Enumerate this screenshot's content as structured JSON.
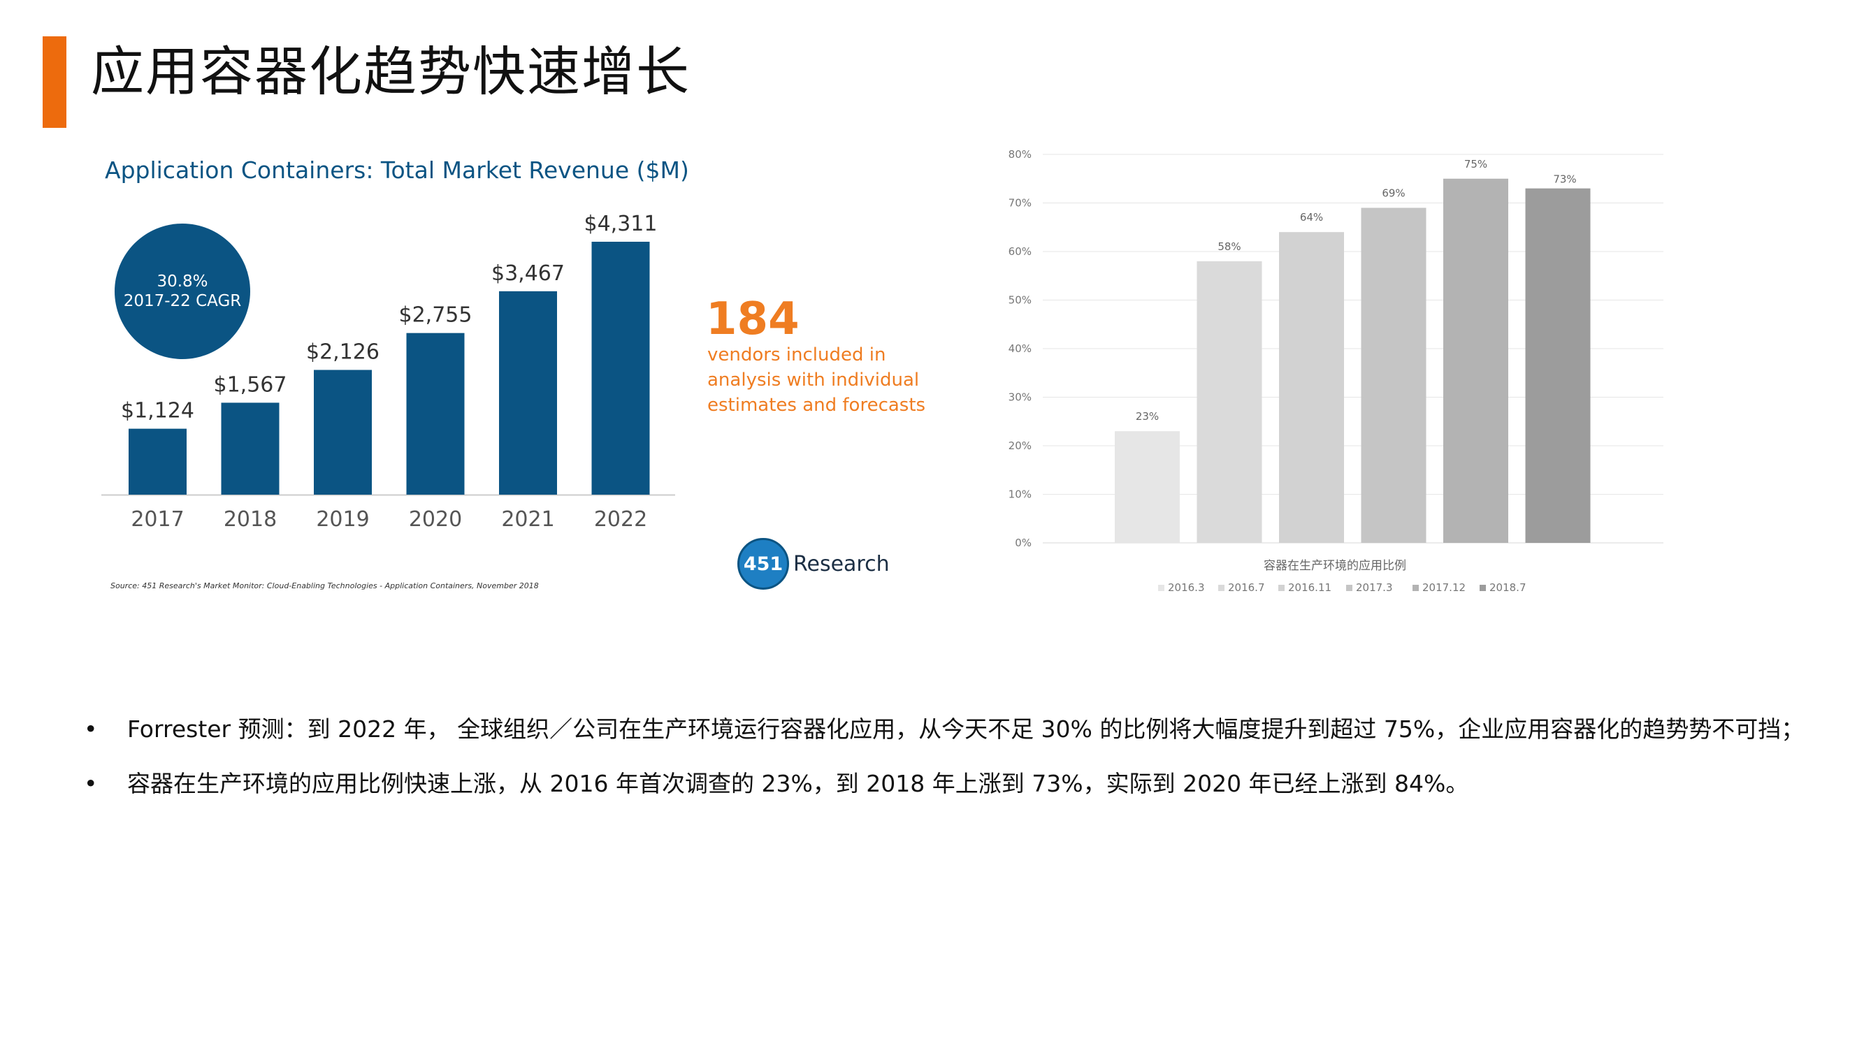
{
  "slide": {
    "title": "应用容器化趋势快速增长"
  },
  "left_chart": {
    "cagr_value": "30.8%",
    "cagr_label": "2017-22 CAGR",
    "vendors_count": "184",
    "vendors_text": "vendors included in analysis with individual estimates and forecasts",
    "source": "Source: 451 Research's Market Monitor: Cloud-Enabling Technologies - Application Containers, November 2018",
    "logo_mark": "451",
    "logo_text": "Research"
  },
  "chart_data": [
    {
      "type": "bar",
      "title": "Application Containers: Total Market Revenue ($M)",
      "categories": [
        "2017",
        "2018",
        "2019",
        "2020",
        "2021",
        "2022"
      ],
      "values": [
        1124,
        1567,
        2126,
        2755,
        3467,
        4311
      ],
      "value_labels": [
        "$1,124",
        "$1,567",
        "$2,126",
        "$2,755",
        "$3,467",
        "$4,311"
      ],
      "ylim": [
        0,
        4311
      ],
      "grid": false,
      "color": "#0b5483"
    },
    {
      "type": "bar",
      "title": "",
      "xlabel": "容器在生产环境的应用比例",
      "categories": [
        "2016.3",
        "2016.7",
        "2016.11",
        "2017.3",
        "2017.12",
        "2018.7"
      ],
      "values": [
        23,
        58,
        64,
        69,
        75,
        73
      ],
      "value_labels": [
        "23%",
        "58%",
        "64%",
        "69%",
        "75%",
        "73%"
      ],
      "y_ticks": [
        "0%",
        "10%",
        "20%",
        "30%",
        "40%",
        "50%",
        "60%",
        "70%",
        "80%"
      ],
      "ylim": [
        0,
        80
      ],
      "grid": true,
      "legend": "bottom",
      "colors": [
        "#e6e6e6",
        "#dadada",
        "#d2d2d2",
        "#c5c5c5",
        "#b3b3b3",
        "#9c9c9c"
      ]
    }
  ],
  "bullets": [
    "Forrester 预测：到 2022 年， 全球组织／公司在生产环境运行容器化应用，从今天不足 30% 的比例将大幅度提升到超过 75%，企业应用容器化的趋势势不可挡；",
    "容器在生产环境的应用比例快速上涨，从 2016 年首次调查的 23%，到 2018 年上涨到 73%，实际到 2020 年已经上涨到 84%。"
  ],
  "bullet_char": "•"
}
